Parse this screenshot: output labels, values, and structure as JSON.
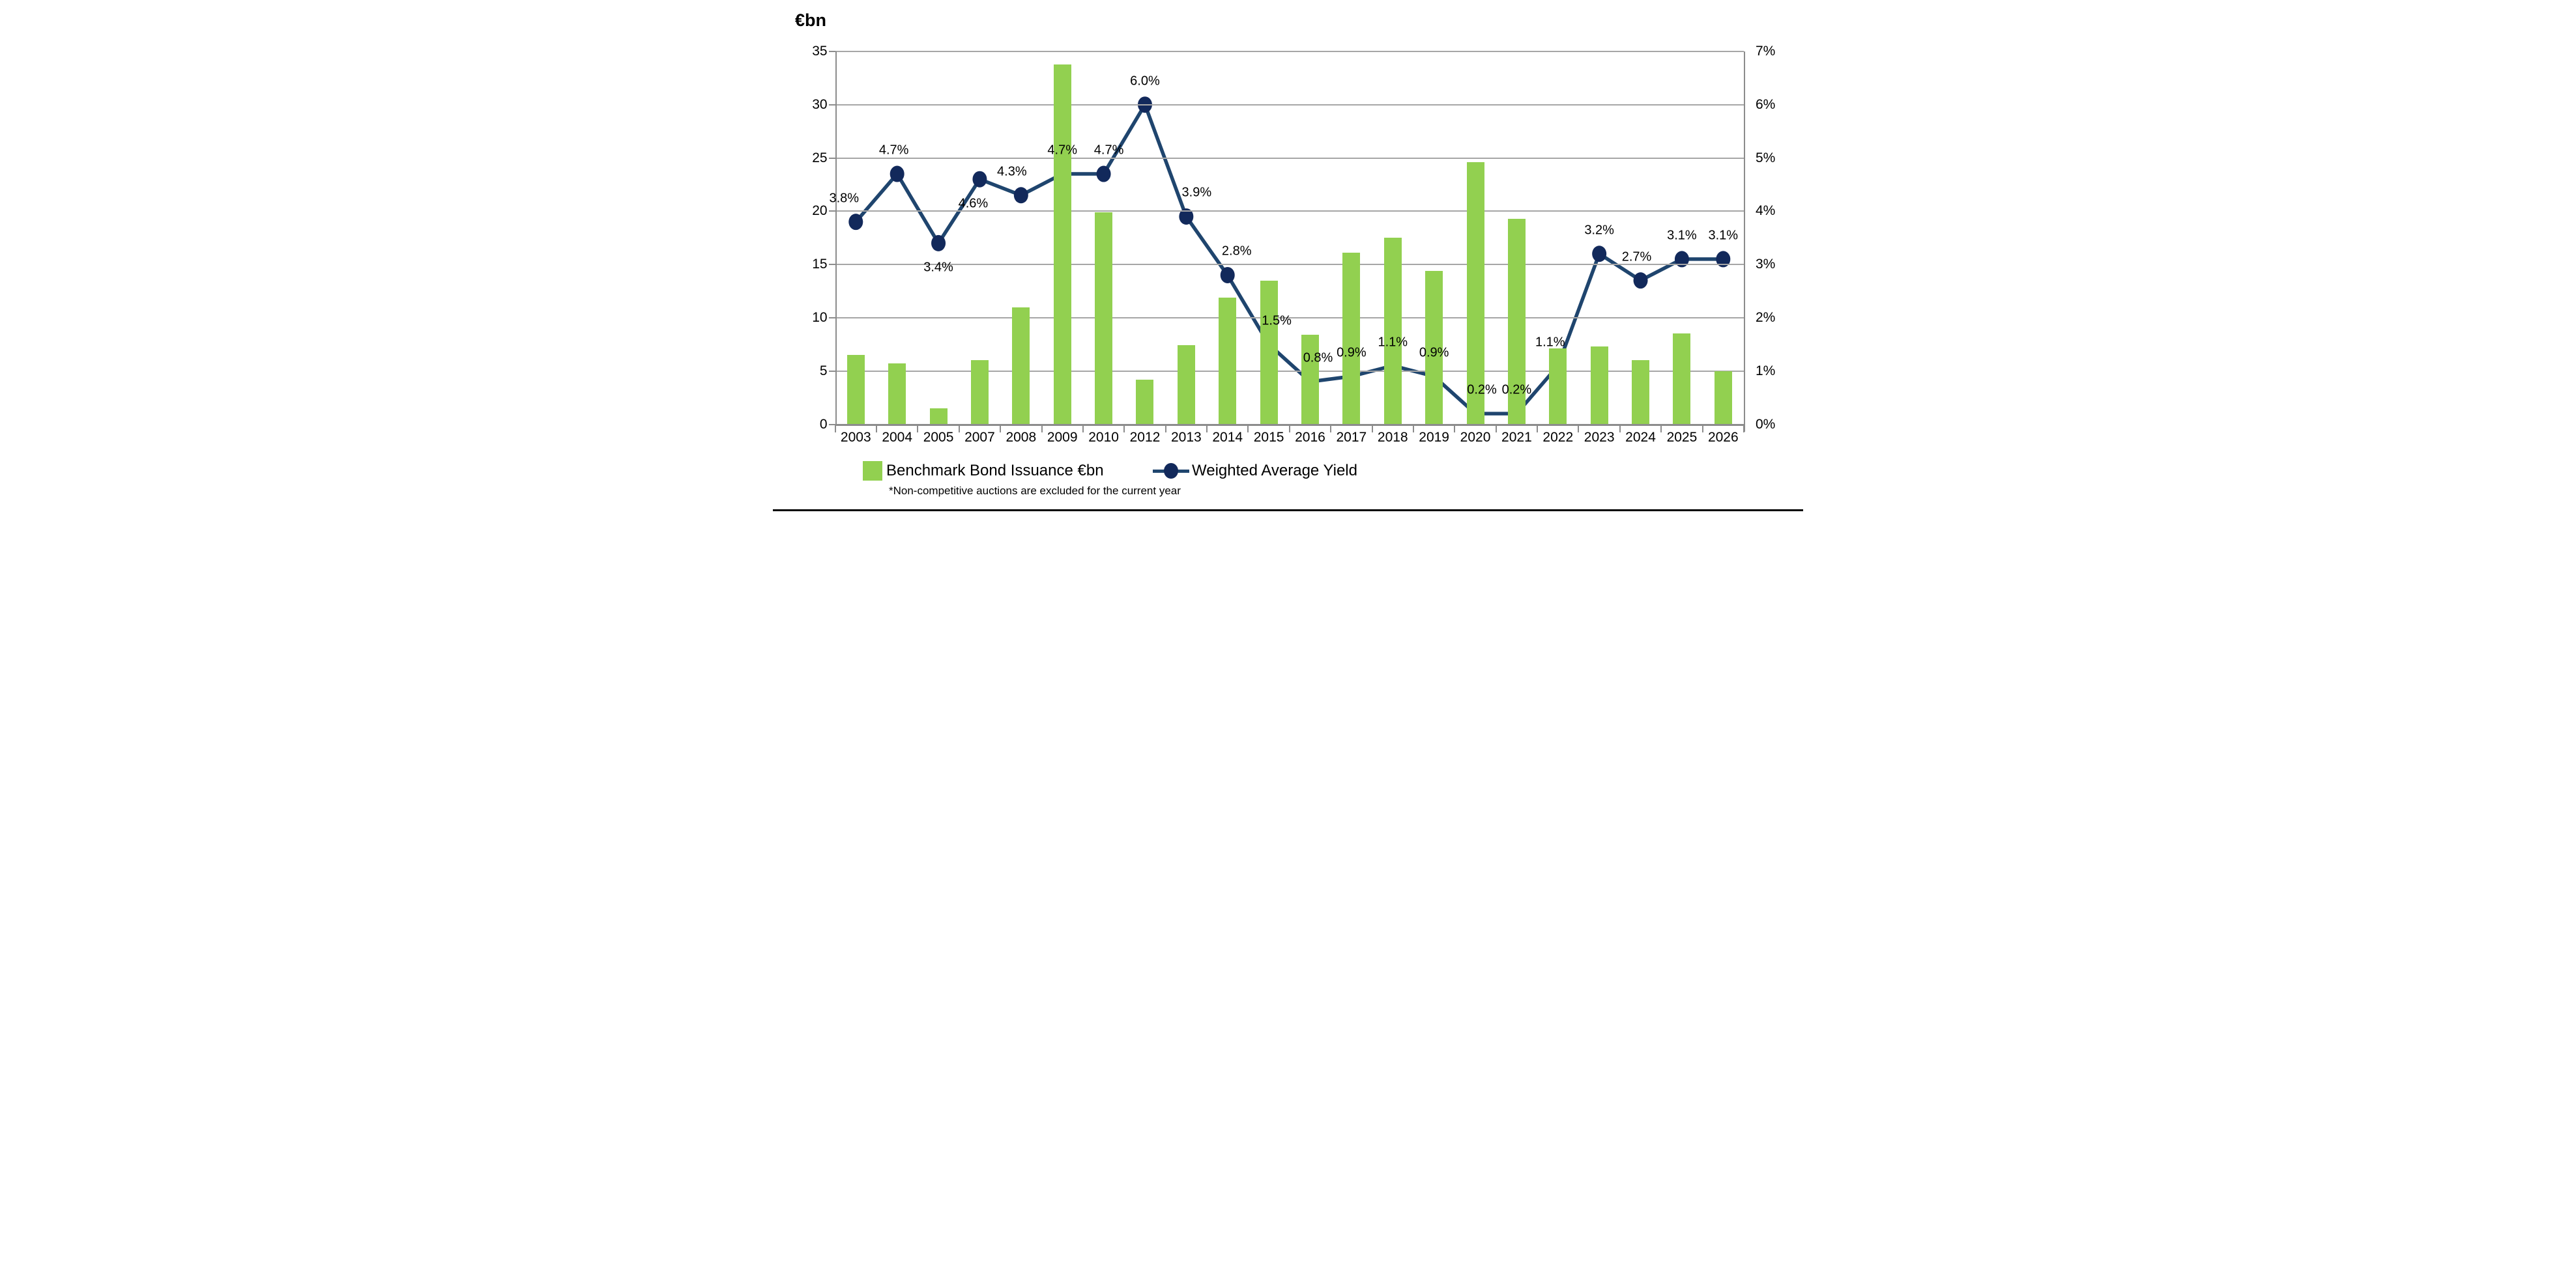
{
  "footnote": "*Non-competitive auctions are excluded for the current year",
  "legend": [
    {
      "label": "Benchmark Bond Issuance €bn",
      "type": "bar-swatch"
    },
    {
      "label": "Weighted Average Yield",
      "type": "line-marker"
    }
  ],
  "colors": {
    "bar": "#92d050",
    "line": "#1f456e",
    "marker": "#12295b",
    "gridline": "#a6a6a6",
    "axis": "#8c8c8c",
    "text": "#000000"
  },
  "chart_data": {
    "type": "bar+line combo",
    "title": "",
    "categories": [
      "2003",
      "2004",
      "2005",
      "2007",
      "2008",
      "2009",
      "2010",
      "2012",
      "2013",
      "2014",
      "2015",
      "2016",
      "2017",
      "2018",
      "2019",
      "2020",
      "2021",
      "2022",
      "2023",
      "2024",
      "2025",
      "2026"
    ],
    "series": [
      {
        "name": "Benchmark Bond Issuance €bn",
        "type": "bar",
        "axis": "left",
        "values": [
          6.5,
          5.7,
          1.5,
          6.0,
          11.0,
          33.8,
          19.9,
          4.2,
          7.4,
          11.9,
          13.5,
          8.4,
          16.1,
          17.5,
          14.4,
          24.6,
          19.3,
          7.1,
          7.3,
          6.0,
          8.5,
          5.0
        ]
      },
      {
        "name": "Weighted Average Yield",
        "type": "line",
        "axis": "right",
        "values": [
          3.8,
          4.7,
          3.4,
          4.6,
          4.3,
          4.7,
          4.7,
          6.0,
          3.9,
          2.8,
          1.5,
          0.8,
          0.9,
          1.1,
          0.9,
          0.2,
          0.2,
          1.1,
          3.2,
          2.7,
          3.1,
          3.1
        ],
        "point_labels": [
          "3.8%",
          "4.7%",
          "3.4%",
          "4.6%",
          "4.3%",
          "4.7%",
          "4.7%",
          "6.0%",
          "3.9%",
          "2.8%",
          "1.5%",
          "0.8%",
          "0.9%",
          "1.1%",
          "0.9%",
          "0.2%",
          "0.2%",
          "1.1%",
          "3.2%",
          "2.7%",
          "3.1%",
          "3.1%"
        ],
        "label_pos": [
          "above",
          "above",
          "below",
          "below",
          "above",
          "above",
          "above",
          "above",
          "above",
          "above",
          "above",
          "above",
          "above",
          "above",
          "above",
          "above",
          "above",
          "above",
          "above",
          "above",
          "above",
          "above"
        ],
        "label_dx": [
          -18,
          -5,
          0,
          -10,
          -14,
          0,
          8,
          0,
          16,
          14,
          12,
          12,
          0,
          0,
          0,
          10,
          0,
          -12,
          0,
          -6,
          0,
          0
        ]
      }
    ],
    "left_axis": {
      "title": "€bn",
      "min": 0,
      "max": 35,
      "step": 5,
      "ticks": [
        "35",
        "30",
        "25",
        "20",
        "15",
        "10",
        "5",
        "0"
      ]
    },
    "right_axis": {
      "min": 0,
      "max": 7,
      "step": 1,
      "ticks": [
        "7%",
        "6%",
        "5%",
        "4%",
        "3%",
        "2%",
        "1%",
        "0%"
      ]
    },
    "grid": true,
    "legend_position": "bottom"
  }
}
